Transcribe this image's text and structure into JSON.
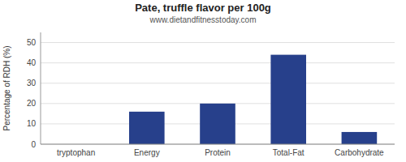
{
  "chart_data": {
    "type": "bar",
    "title": "Pate, truffle flavor per 100g",
    "subtitle": "www.dietandfitnesstoday.com",
    "categories": [
      "tryptophan",
      "Energy",
      "Protein",
      "Total-Fat",
      "Carbohydrate"
    ],
    "values": [
      0,
      16,
      20,
      44,
      6
    ],
    "color": "#27408b",
    "ylabel": "Percentage of RDH (%)",
    "ylim": [
      0,
      55
    ],
    "yticks": [
      0,
      10,
      20,
      30,
      40,
      50
    ],
    "grid": true
  }
}
